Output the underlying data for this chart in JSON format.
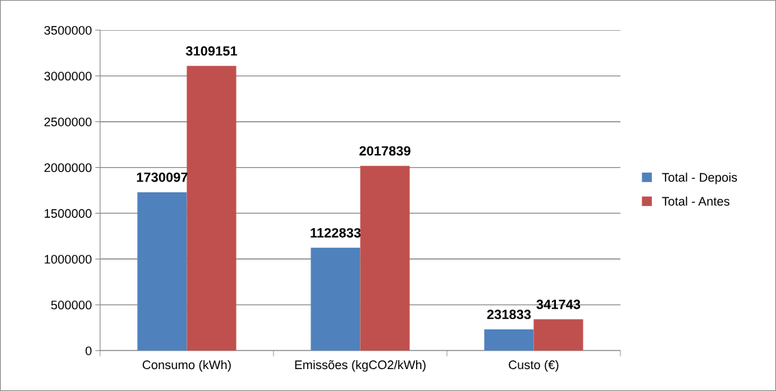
{
  "chart_data": {
    "type": "bar",
    "categories": [
      "Consumo (kWh)",
      "Emissões (kgCO2/kWh)",
      "Custo (€)"
    ],
    "series": [
      {
        "name": "Total - Depois",
        "color": "#4f81bd",
        "values": [
          1730097,
          1122833,
          231833
        ]
      },
      {
        "name": "Total - Antes",
        "color": "#c0504d",
        "values": [
          3109151,
          2017839,
          341743
        ]
      }
    ],
    "ylim": [
      0,
      3500000
    ],
    "yticks": [
      0,
      500000,
      1000000,
      1500000,
      2000000,
      2500000,
      3000000,
      3500000
    ],
    "grid": "y",
    "legend": "right",
    "data_labels": true
  }
}
